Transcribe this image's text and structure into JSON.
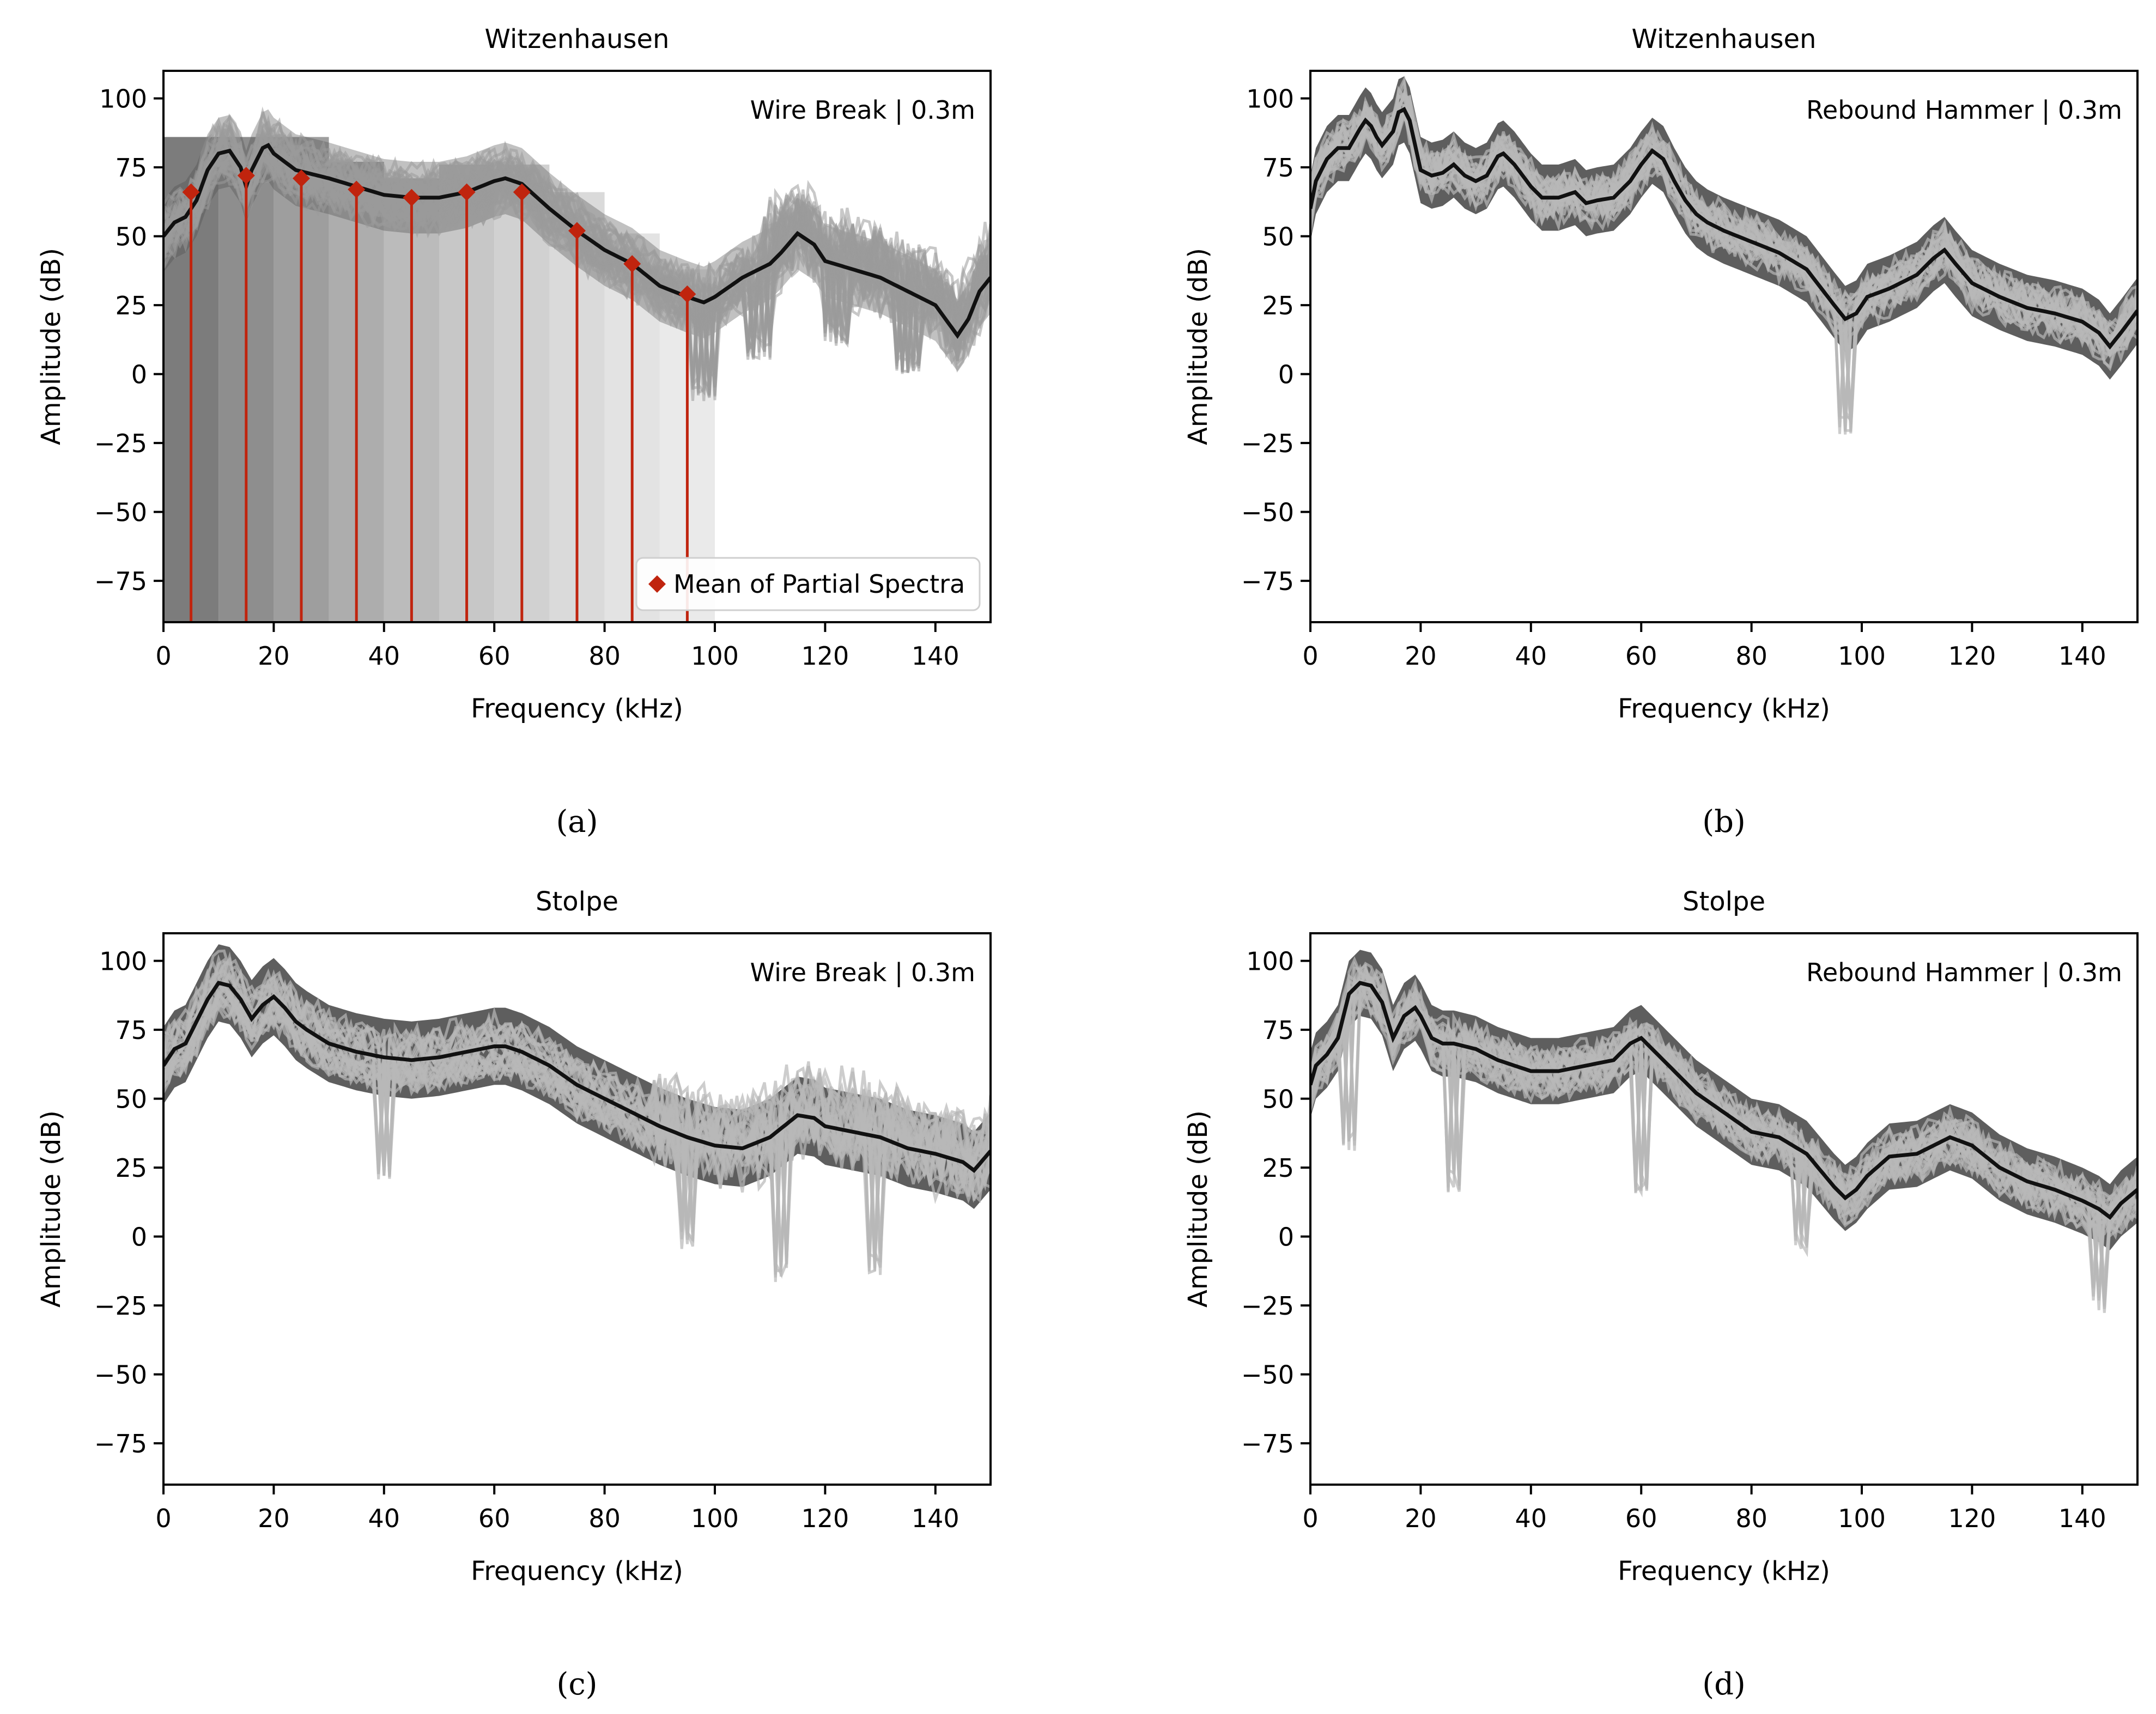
{
  "colors": {
    "mean_line": "#111111",
    "trial_band": "#4d4d4d",
    "trial_line": "#b8b8b8",
    "marker": "#c0240e",
    "frame": "#000000",
    "bg": "#ffffff"
  },
  "chart_data": [
    {
      "id": "a",
      "type": "line",
      "title": "Witzenhausen",
      "annotation": "Wire Break | 0.3m",
      "caption": "(a)",
      "xlabel": "Frequency (kHz)",
      "ylabel": "Amplitude (dB)",
      "xlim": [
        0,
        150
      ],
      "ylim": [
        -90,
        110
      ],
      "xticks": [
        "0",
        "20",
        "40",
        "60",
        "80",
        "100",
        "120",
        "140"
      ],
      "yticks": [
        "100",
        "75",
        "50",
        "25",
        "0",
        "−25",
        "−50",
        "−75"
      ],
      "band_width": 13,
      "band_dispersion": 9,
      "mean_curve": {
        "x": [
          0,
          2,
          4,
          6,
          8,
          10,
          12,
          14,
          15,
          16,
          18,
          19,
          20,
          22,
          24,
          26,
          30,
          35,
          40,
          45,
          50,
          55,
          60,
          62,
          65,
          70,
          75,
          80,
          85,
          90,
          95,
          98,
          100,
          105,
          110,
          112,
          115,
          118,
          120,
          125,
          130,
          135,
          140,
          144,
          146,
          148,
          150
        ],
        "y": [
          50,
          55,
          57,
          63,
          74,
          80,
          81,
          75,
          68,
          74,
          82,
          83,
          80,
          77,
          74,
          73,
          71,
          68,
          65,
          64,
          64,
          66,
          70,
          71,
          69,
          60,
          52,
          45,
          40,
          32,
          28,
          26,
          28,
          35,
          40,
          44,
          51,
          47,
          41,
          38,
          35,
          30,
          25,
          14,
          20,
          30,
          35
        ]
      },
      "spread_curves": {
        "dips": [
          [
            98,
            -10
          ],
          [
            108,
            5
          ],
          [
            122,
            10
          ],
          [
            135,
            0
          ]
        ],
        "dip_width": 2,
        "tail_x": 108
      },
      "partial_spectra": {
        "legend": "Mean of Partial Spectra",
        "centers_khz": [
          5,
          15,
          25,
          35,
          45,
          55,
          65,
          75,
          85,
          95
        ],
        "means_db": [
          66,
          72,
          71,
          67,
          64,
          66,
          66,
          52,
          40,
          29
        ],
        "bin_edges_khz": [
          0,
          10,
          20,
          30,
          40,
          50,
          60,
          70,
          80,
          90,
          100
        ],
        "bin_shade_order": [
          "#505050",
          "#686868",
          "#7e7e7e",
          "#929292",
          "#a4a4a4",
          "#b4b4b4",
          "#c2c2c2",
          "#cecece",
          "#d9d9d9",
          "#e3e3e3"
        ]
      }
    },
    {
      "id": "b",
      "type": "line",
      "title": "Witzenhausen",
      "annotation": "Rebound Hammer | 0.3m",
      "caption": "(b)",
      "xlabel": "Frequency (kHz)",
      "ylabel": "Amplitude (dB)",
      "xlim": [
        0,
        150
      ],
      "ylim": [
        -90,
        110
      ],
      "xticks": [
        "0",
        "20",
        "40",
        "60",
        "80",
        "100",
        "120",
        "140"
      ],
      "yticks": [
        "100",
        "75",
        "50",
        "25",
        "0",
        "−25",
        "−50",
        "−75"
      ],
      "band_width": 12,
      "band_dispersion": 6,
      "mean_curve": {
        "x": [
          0,
          1,
          3,
          5,
          7,
          9,
          10,
          11,
          12,
          13,
          15,
          16,
          17,
          18,
          19,
          20,
          22,
          24,
          26,
          28,
          30,
          32,
          34,
          35,
          37,
          40,
          42,
          45,
          48,
          50,
          52,
          55,
          58,
          60,
          62,
          64,
          66,
          68,
          70,
          72,
          75,
          80,
          85,
          90,
          95,
          97,
          99,
          101,
          105,
          110,
          113,
          115,
          117,
          120,
          125,
          130,
          135,
          140,
          143,
          145,
          147,
          150
        ],
        "y": [
          60,
          70,
          78,
          82,
          82,
          89,
          92,
          90,
          86,
          83,
          88,
          95,
          96,
          92,
          83,
          74,
          72,
          73,
          76,
          72,
          70,
          72,
          79,
          80,
          76,
          68,
          64,
          64,
          66,
          62,
          63,
          64,
          70,
          76,
          81,
          78,
          70,
          63,
          58,
          55,
          52,
          48,
          44,
          38,
          25,
          20,
          22,
          28,
          31,
          36,
          42,
          45,
          40,
          33,
          28,
          24,
          22,
          19,
          15,
          10,
          15,
          23
        ]
      },
      "spread_curves": {
        "dips": [
          [
            97,
            -22
          ]
        ],
        "dip_width": 1.5,
        "tail_x": 160
      }
    },
    {
      "id": "c",
      "type": "line",
      "title": "Stolpe",
      "annotation": "Wire Break | 0.3m",
      "caption": "(c)",
      "xlabel": "Frequency (kHz)",
      "ylabel": "Amplitude (dB)",
      "xlim": [
        0,
        150
      ],
      "ylim": [
        -90,
        110
      ],
      "xticks": [
        "0",
        "20",
        "40",
        "60",
        "80",
        "100",
        "120",
        "140"
      ],
      "yticks": [
        "100",
        "75",
        "50",
        "25",
        "0",
        "−25",
        "−50",
        "−75"
      ],
      "band_width": 14,
      "band_dispersion": 8,
      "mean_curve": {
        "x": [
          0,
          2,
          4,
          6,
          8,
          10,
          12,
          14,
          16,
          18,
          20,
          22,
          24,
          26,
          30,
          35,
          40,
          45,
          50,
          55,
          60,
          62,
          65,
          70,
          75,
          80,
          85,
          90,
          95,
          100,
          105,
          110,
          115,
          118,
          120,
          125,
          130,
          135,
          140,
          145,
          147,
          150
        ],
        "y": [
          62,
          68,
          70,
          78,
          86,
          92,
          91,
          86,
          79,
          84,
          87,
          83,
          78,
          75,
          70,
          67,
          65,
          64,
          65,
          67,
          69,
          69,
          67,
          62,
          55,
          50,
          45,
          40,
          36,
          33,
          32,
          36,
          44,
          43,
          40,
          38,
          36,
          32,
          30,
          27,
          24,
          31
        ]
      },
      "spread_curves": {
        "dips": [
          [
            40,
            20
          ],
          [
            95,
            -5
          ],
          [
            112,
            -17
          ],
          [
            129,
            -15
          ]
        ],
        "dip_width": 1.5,
        "tail_x": 88
      }
    },
    {
      "id": "d",
      "type": "line",
      "title": "Stolpe",
      "annotation": "Rebound Hammer | 0.3m",
      "caption": "(d)",
      "xlabel": "Frequency (kHz)",
      "ylabel": "Amplitude (dB)",
      "xlim": [
        0,
        150
      ],
      "ylim": [
        -90,
        110
      ],
      "xticks": [
        "0",
        "20",
        "40",
        "60",
        "80",
        "100",
        "120",
        "140"
      ],
      "yticks": [
        "100",
        "75",
        "50",
        "25",
        "0",
        "−25",
        "−50",
        "−75"
      ],
      "band_width": 12,
      "band_dispersion": 6,
      "mean_curve": {
        "x": [
          0,
          1,
          3,
          5,
          7,
          9,
          11,
          13,
          15,
          17,
          19,
          20,
          22,
          24,
          26,
          30,
          34,
          40,
          45,
          50,
          55,
          58,
          60,
          62,
          65,
          70,
          75,
          80,
          85,
          90,
          95,
          97,
          99,
          101,
          105,
          110,
          113,
          116,
          120,
          125,
          130,
          135,
          140,
          143,
          145,
          147,
          150
        ],
        "y": [
          55,
          62,
          66,
          72,
          88,
          92,
          91,
          85,
          72,
          80,
          83,
          80,
          72,
          70,
          70,
          68,
          64,
          60,
          60,
          62,
          64,
          70,
          72,
          68,
          62,
          52,
          45,
          38,
          36,
          30,
          18,
          14,
          17,
          22,
          29,
          30,
          33,
          36,
          33,
          25,
          20,
          17,
          13,
          10,
          7,
          12,
          17
        ]
      },
      "spread_curves": {
        "dips": [
          [
            7,
            30
          ],
          [
            26,
            15
          ],
          [
            60,
            15
          ],
          [
            89,
            -7
          ],
          [
            143,
            -28
          ]
        ],
        "dip_width": 1.2,
        "tail_x": 160
      }
    }
  ]
}
